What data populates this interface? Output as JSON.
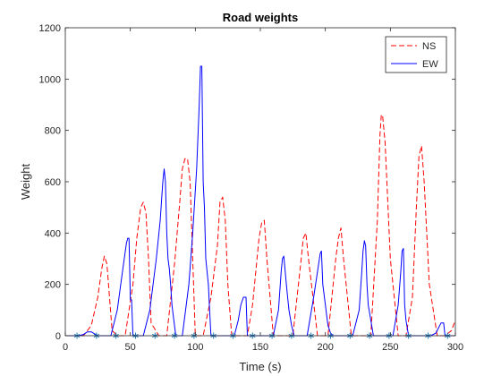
{
  "chart_data": {
    "type": "line",
    "title": "Road weights",
    "xlabel": "Time (s)",
    "ylabel": "Weight",
    "xlim": [
      0,
      300
    ],
    "ylim": [
      0,
      1200
    ],
    "xticks": [
      0,
      50,
      100,
      150,
      200,
      250,
      300
    ],
    "yticks": [
      0,
      200,
      400,
      600,
      800,
      1000,
      1200
    ],
    "grid": false,
    "legend_position": "top-right",
    "series": [
      {
        "name": "NS",
        "color": "#ff0000",
        "style": "dashed",
        "x": [
          0,
          8,
          14,
          20,
          25,
          28,
          30,
          32,
          34,
          36,
          40,
          46,
          52,
          55,
          58,
          60,
          62,
          64,
          66,
          72,
          78,
          84,
          88,
          90,
          92,
          94,
          96,
          100,
          102,
          104,
          106,
          112,
          117,
          119,
          121,
          123,
          125,
          128,
          134,
          140,
          144,
          149,
          151,
          153,
          155,
          160,
          168,
          175,
          181,
          183,
          185,
          187,
          194,
          202,
          208,
          210,
          212,
          214,
          220,
          228,
          235,
          240,
          242,
          243,
          244,
          246,
          250,
          256,
          262,
          267,
          270,
          272,
          274,
          276,
          280,
          286,
          292,
          297,
          300
        ],
        "y": [
          0,
          0,
          0,
          40,
          150,
          260,
          310,
          280,
          150,
          20,
          0,
          0,
          200,
          380,
          500,
          520,
          480,
          300,
          50,
          0,
          0,
          280,
          520,
          650,
          690,
          690,
          600,
          0,
          0,
          0,
          0,
          150,
          350,
          520,
          540,
          450,
          200,
          0,
          0,
          0,
          120,
          380,
          440,
          450,
          300,
          0,
          0,
          0,
          280,
          380,
          400,
          300,
          0,
          0,
          300,
          380,
          420,
          300,
          0,
          0,
          0,
          450,
          780,
          860,
          860,
          750,
          300,
          0,
          0,
          150,
          500,
          700,
          740,
          600,
          200,
          0,
          0,
          20,
          60
        ]
      },
      {
        "name": "EW",
        "color": "#0000ff",
        "style": "solid",
        "x": [
          0,
          10,
          14,
          17,
          20,
          25,
          30,
          35,
          40,
          44,
          47,
          48,
          49,
          50,
          51,
          52,
          53,
          55,
          60,
          65,
          70,
          73,
          75,
          76,
          77,
          78,
          79,
          80,
          81,
          82,
          83,
          85,
          90,
          95,
          98,
          101,
          103,
          104,
          105,
          106,
          107,
          108,
          110,
          111,
          112,
          115,
          120,
          125,
          130,
          133,
          135,
          137,
          139,
          140,
          142,
          145,
          150,
          155,
          160,
          164,
          166,
          167,
          168,
          170,
          171,
          172,
          174,
          176,
          181,
          186,
          191,
          194,
          196,
          197,
          198,
          200,
          201,
          202,
          204,
          206,
          211,
          216,
          221,
          226,
          228,
          229,
          230,
          231,
          232,
          233,
          235,
          237,
          242,
          247,
          252,
          256,
          258,
          259,
          260,
          261,
          262,
          264,
          266,
          271,
          276,
          281,
          285,
          287,
          289,
          290,
          291,
          292,
          293,
          295,
          300
        ],
        "y": [
          0,
          0,
          5,
          15,
          15,
          0,
          0,
          0,
          100,
          250,
          360,
          380,
          380,
          140,
          140,
          0,
          0,
          0,
          0,
          100,
          300,
          450,
          600,
          650,
          600,
          400,
          300,
          260,
          200,
          120,
          80,
          0,
          0,
          200,
          400,
          650,
          900,
          1050,
          1050,
          600,
          500,
          300,
          200,
          100,
          0,
          0,
          0,
          0,
          0,
          60,
          120,
          150,
          150,
          0,
          0,
          0,
          0,
          0,
          0,
          100,
          250,
          300,
          310,
          200,
          150,
          100,
          40,
          0,
          0,
          0,
          150,
          250,
          320,
          330,
          200,
          120,
          80,
          40,
          10,
          0,
          0,
          0,
          0,
          100,
          250,
          330,
          370,
          350,
          200,
          120,
          60,
          0,
          0,
          0,
          0,
          120,
          250,
          330,
          340,
          120,
          60,
          0,
          0,
          0,
          0,
          0,
          10,
          30,
          50,
          50,
          50,
          0,
          0,
          0,
          0
        ]
      },
      {
        "name": "",
        "color": "#1f77b4",
        "style": "markers-asterisk",
        "x": [
          9,
          24,
          39,
          54,
          69,
          84,
          99,
          114,
          129,
          144,
          159,
          174,
          189,
          204,
          219,
          234,
          249,
          264,
          279,
          294
        ],
        "y": [
          0,
          0,
          0,
          0,
          0,
          0,
          0,
          0,
          0,
          0,
          0,
          0,
          0,
          0,
          0,
          0,
          0,
          0,
          0,
          0
        ]
      }
    ]
  }
}
